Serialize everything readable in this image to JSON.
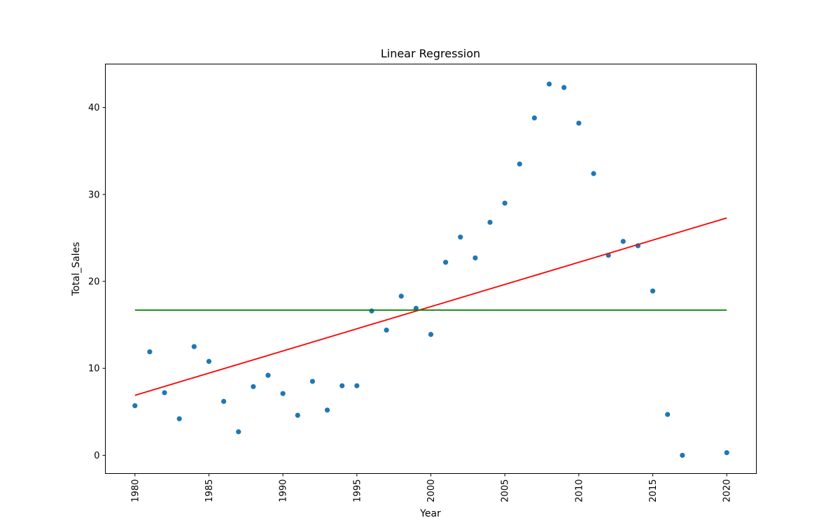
{
  "chart_data": {
    "type": "scatter",
    "title": "Linear Regression",
    "xlabel": "Year",
    "ylabel": "Total_Sales",
    "xlim": [
      1978,
      2022
    ],
    "ylim": [
      -2.1,
      45
    ],
    "xticks": [
      1980,
      1985,
      1990,
      1995,
      2000,
      2005,
      2010,
      2015,
      2020
    ],
    "yticks": [
      0,
      10,
      20,
      30,
      40
    ],
    "xtick_rotation": 90,
    "grid": false,
    "legend": "none",
    "points": {
      "color": "#1f77b4",
      "x": [
        1980,
        1981,
        1982,
        1983,
        1984,
        1985,
        1986,
        1987,
        1988,
        1989,
        1990,
        1991,
        1992,
        1993,
        1994,
        1995,
        1996,
        1997,
        1998,
        1999,
        2000,
        2001,
        2002,
        2003,
        2004,
        2005,
        2006,
        2007,
        2008,
        2009,
        2010,
        2011,
        2012,
        2013,
        2014,
        2015,
        2016,
        2017,
        2020
      ],
      "y": [
        5.7,
        11.9,
        7.2,
        4.2,
        12.5,
        10.8,
        6.2,
        2.7,
        7.9,
        9.2,
        7.1,
        4.6,
        8.5,
        5.2,
        8.0,
        8.0,
        16.6,
        14.4,
        18.3,
        16.9,
        13.9,
        22.2,
        25.1,
        22.7,
        26.8,
        29.0,
        33.5,
        38.8,
        42.7,
        42.3,
        38.2,
        32.4,
        23.0,
        24.6,
        24.1,
        18.9,
        4.7,
        0.0,
        0.3
      ]
    },
    "lines": [
      {
        "color": "#ff0000",
        "x": [
          1980,
          2020
        ],
        "y": [
          6.9,
          27.3
        ]
      },
      {
        "color": "#008000",
        "x": [
          1980,
          2020
        ],
        "y": [
          16.7,
          16.7
        ]
      }
    ]
  }
}
